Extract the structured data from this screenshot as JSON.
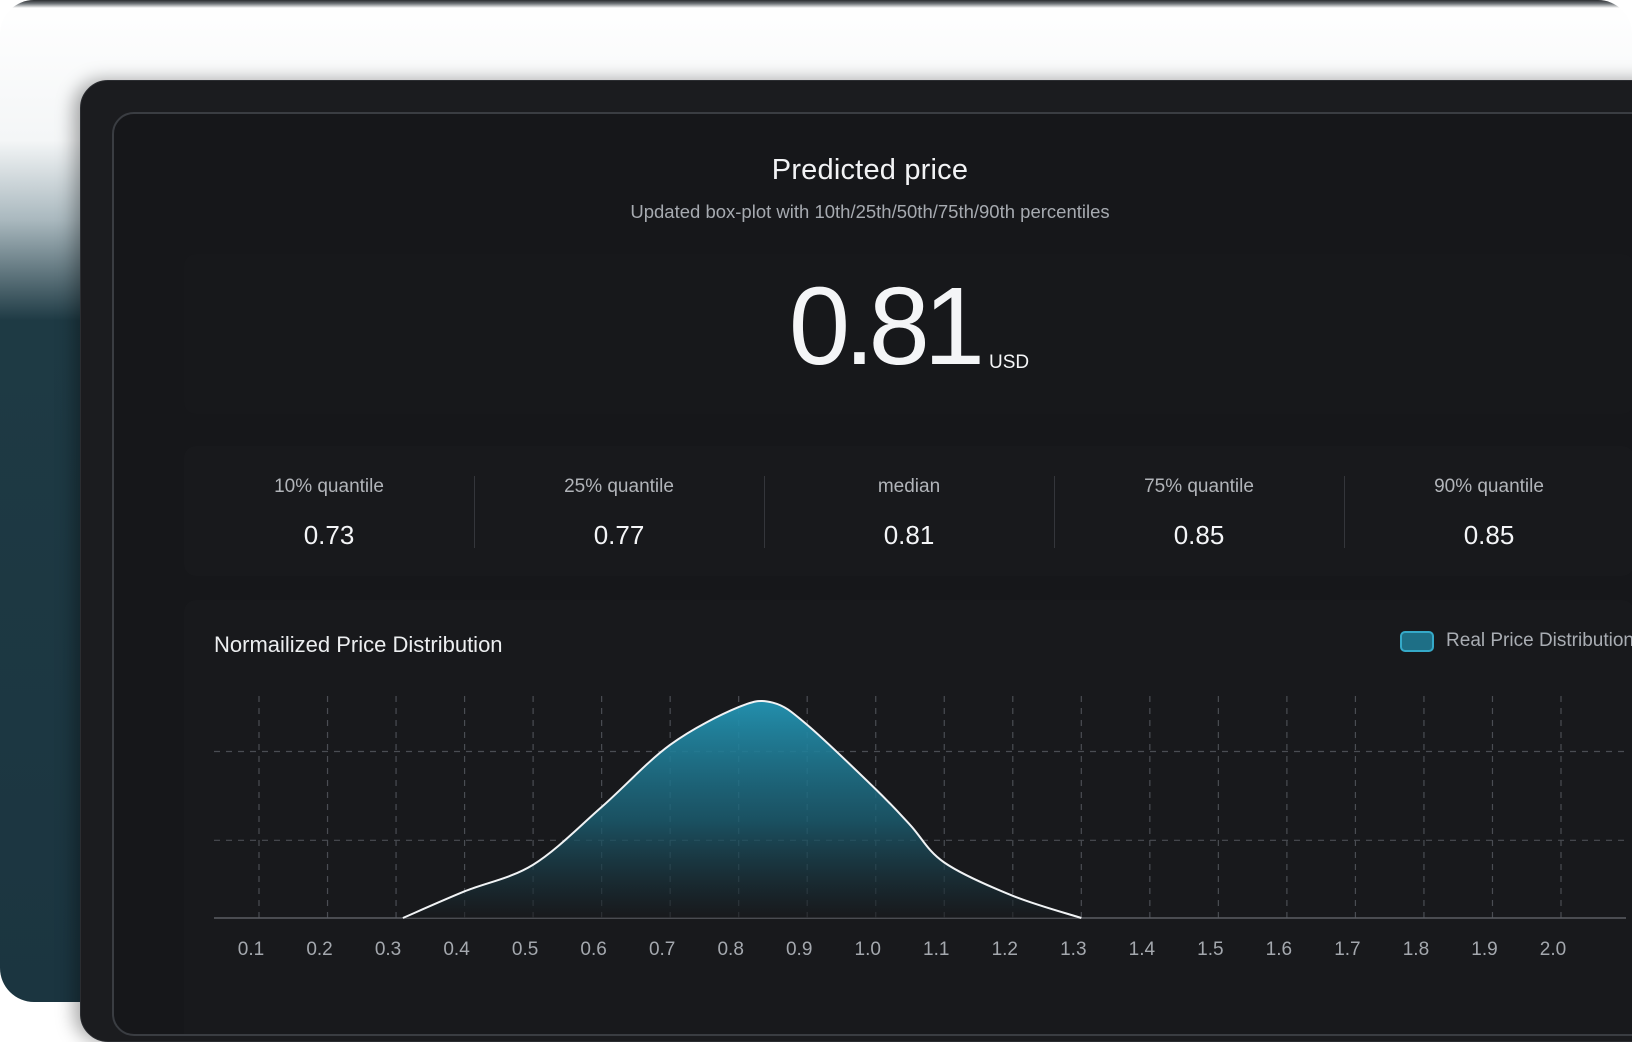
{
  "header": {
    "title": "Predicted price",
    "subtitle": "Updated box-plot with 10th/25th/50th/75th/90th percentiles"
  },
  "price": {
    "value": "0.81",
    "unit": "USD"
  },
  "quantiles": [
    {
      "label": "10% quantile",
      "value": "0.73"
    },
    {
      "label": "25% quantile",
      "value": "0.77"
    },
    {
      "label": "median",
      "value": "0.81"
    },
    {
      "label": "75% quantile",
      "value": "0.85"
    },
    {
      "label": "90% quantile",
      "value": "0.85"
    }
  ],
  "colors": {
    "accent": "#1e8aa8",
    "accent_light": "#35a9c8",
    "background": "#16171a"
  },
  "chart_data": {
    "type": "area",
    "title": "Normailized Price Distribution",
    "legend": [
      "Real Price Distribution"
    ],
    "legend_position": "top-right",
    "grid": true,
    "xlim": [
      0.1,
      2.0
    ],
    "ylim": [
      0,
      1.0
    ],
    "x_ticks": [
      "0.1",
      "0.2",
      "0.3",
      "0.4",
      "0.5",
      "0.6",
      "0.7",
      "0.8",
      "0.9",
      "1.0",
      "1.1",
      "1.2",
      "1.3",
      "1.4",
      "1.5",
      "1.6",
      "1.7",
      "1.8",
      "1.9",
      "2.0"
    ],
    "series": [
      {
        "name": "Real Price Distribution",
        "x": [
          0.31,
          0.4,
          0.5,
          0.6,
          0.7,
          0.8,
          0.85,
          0.9,
          1.0,
          1.05,
          1.1,
          1.2,
          1.3
        ],
        "y": [
          0.0,
          0.12,
          0.24,
          0.5,
          0.78,
          0.95,
          0.97,
          0.87,
          0.58,
          0.42,
          0.25,
          0.1,
          0.0
        ]
      }
    ]
  }
}
